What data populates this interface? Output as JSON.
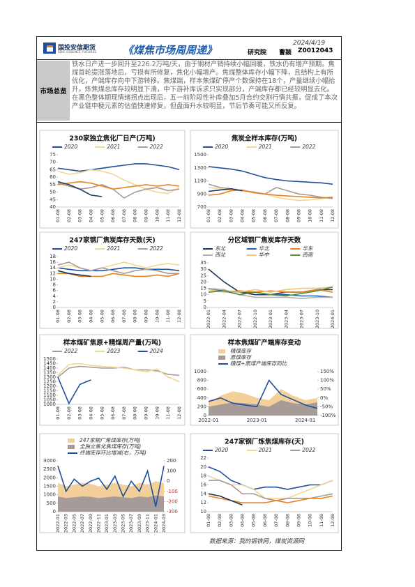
{
  "header": {
    "logo_cn": "国投安信期货",
    "logo_en": "SDIC ESSENCE FUTURES",
    "title": "《煤焦市场周周递》",
    "date": "2024/4/19",
    "institute": "研究院",
    "author": "曹颖",
    "code": "Z0012043"
  },
  "summary": {
    "label": "市场总览",
    "text": "铁水日产进一步回升至226.2万吨/天，由于钢材产销持续小幅回暖，铁水仍有增产预期。焦煤首轮提涨落地后，亏损有所修复，焦化小幅增产。焦煤整体库存小幅下降，且结构上有所优化，产端库存向中下游转移。焦煤端，样本焦煤矿停产个数保持在18个，产量继续小幅抬升。炼焦煤总库存较明显下滑，中下游补库诉求只实现部分，产端库存都已经较明显去化。在黑色整体期现情绪拐点出现后，五一前阶段性补库叠加5月合约交割行情共振，促成了本次产业链中梗元素的估值快速修复，但盘面升水较明显，节后节奏可能又所反复。"
  },
  "charts": [
    {
      "type": "line",
      "title": "230家独立焦化厂日产(万吨)",
      "categories": [
        "01-08",
        "02-08",
        "03-08",
        "04-08",
        "05-08",
        "06-08",
        "07-08",
        "08-08",
        "09-08",
        "10-08",
        "11-08",
        "12-08"
      ],
      "ylim": [
        40,
        75
      ],
      "yticks": [
        40,
        45,
        50,
        55,
        60,
        65,
        70,
        75
      ],
      "series": [
        {
          "name": "2020",
          "color": "#1f4e9c",
          "values": [
            66,
            65,
            64,
            65,
            66,
            67,
            68,
            69,
            69,
            68,
            67,
            65
          ]
        },
        {
          "name": "2021",
          "color": "#f3d594",
          "values": [
            64,
            62,
            63,
            65,
            64,
            62,
            58,
            55,
            52,
            50,
            49,
            53
          ]
        },
        {
          "name": "2022",
          "color": "#a69b96",
          "values": [
            56,
            54,
            52,
            53,
            55,
            52,
            46,
            50,
            52,
            53,
            51,
            52
          ]
        },
        {
          "color": "#e8821e",
          "values": [
            55,
            56,
            57,
            56,
            54,
            52,
            53,
            54,
            55,
            54,
            55,
            54
          ]
        },
        {
          "color": "#1a3560",
          "values": [
            57,
            55,
            52,
            48,
            47,
            null,
            null,
            null,
            null,
            null,
            null,
            null
          ]
        }
      ]
    },
    {
      "type": "line",
      "title": "焦炭全样本库存(万吨)",
      "categories": [
        "01-08",
        "02-08",
        "03-08",
        "04-08",
        "05-08",
        "06-08",
        "07-08",
        "08-08",
        "09-08",
        "10-08",
        "11-08",
        "12-08"
      ],
      "ylim": [
        700,
        1500
      ],
      "yticks": [
        700,
        900,
        1100,
        1300,
        1500
      ],
      "series": [
        {
          "name": "2020",
          "color": "#1f4e9c",
          "values": [
            1320,
            1300,
            1280,
            1250,
            1200,
            1150,
            1120,
            1100,
            1090,
            1080,
            1070,
            1050
          ]
        },
        {
          "name": "2021",
          "color": "#f3d594",
          "values": [
            1000,
            980,
            960,
            950,
            920,
            900,
            850,
            820,
            800,
            810,
            830,
            850
          ]
        },
        {
          "name": "2022",
          "color": "#a69b96",
          "values": [
            1050,
            1000,
            980,
            950,
            930,
            900,
            1000,
            950,
            900,
            880,
            850,
            830
          ]
        },
        {
          "color": "#e8821e",
          "values": [
            880,
            900,
            950,
            960,
            920,
            900,
            880,
            870,
            860,
            850,
            840,
            850
          ]
        },
        {
          "color": "#1a3560",
          "values": [
            940,
            960,
            980,
            950,
            null,
            null,
            null,
            null,
            null,
            null,
            null,
            null
          ]
        }
      ]
    },
    {
      "type": "line",
      "title": "247家钢厂焦炭库存天数(天)",
      "categories": [
        "01-08",
        "02-08",
        "03-08",
        "04-08",
        "05-08",
        "06-08",
        "07-08",
        "08-08",
        "09-08",
        "10-08",
        "11-08",
        "12-08"
      ],
      "ylim": [
        0,
        18
      ],
      "yticks": [
        0,
        2,
        4,
        6,
        8,
        10,
        12,
        14,
        16,
        18
      ],
      "series": [
        {
          "name": "2020",
          "color": "#1f4e9c",
          "values": [
            14,
            13.5,
            13,
            13,
            13,
            13.5,
            14,
            14,
            13.5,
            13.5,
            13.5,
            13
          ]
        },
        {
          "name": "2021",
          "color": "#f3d594",
          "values": [
            14,
            15,
            14,
            13,
            14,
            15,
            16,
            15,
            14,
            15,
            15.5,
            15
          ]
        },
        {
          "name": "2022",
          "color": "#a69b96",
          "values": [
            15,
            16,
            14,
            13,
            14,
            13,
            12,
            13,
            13.5,
            13,
            12,
            12
          ]
        },
        {
          "color": "#e8821e",
          "values": [
            12,
            12,
            11,
            11,
            11,
            12,
            11.5,
            11,
            11,
            11.5,
            11,
            12
          ]
        },
        {
          "color": "#1a3560",
          "values": [
            13,
            12,
            11.5,
            11,
            null,
            null,
            null,
            null,
            null,
            null,
            null,
            null
          ]
        }
      ]
    },
    {
      "type": "line",
      "title": "分区域钢厂焦炭库存天数",
      "categories": [
        "2022-01",
        "2022-04",
        "2022-07",
        "2022-10",
        "2023-01",
        "2023-04",
        "2023-07",
        "2023-10",
        "2024-01"
      ],
      "ylim": [
        0,
        35
      ],
      "yticks": [
        0,
        5,
        10,
        15,
        20,
        25,
        30,
        35
      ],
      "series": [
        {
          "name": "东北",
          "color": "#1a3560",
          "values": [
            30,
            20,
            12,
            10,
            10,
            12,
            12,
            14,
            14
          ]
        },
        {
          "name": "华北",
          "color": "#1f5fb0",
          "values": [
            14,
            13,
            12,
            12,
            10,
            10,
            9,
            9,
            8
          ]
        },
        {
          "name": "华东",
          "color": "#e8821e",
          "values": [
            14,
            12,
            13,
            12,
            13,
            12,
            12,
            14,
            12
          ]
        },
        {
          "name": "西北",
          "color": "#b0b0b0",
          "values": [
            15,
            14,
            10,
            8,
            8,
            8,
            7,
            8,
            8
          ]
        },
        {
          "name": "华中",
          "color": "#f0c27a",
          "values": [
            14,
            12,
            12,
            14,
            12,
            14,
            15,
            15,
            16
          ]
        },
        {
          "name": "西南",
          "color": "#5a8a3a",
          "values": [
            12,
            13,
            10,
            12,
            10,
            9,
            11,
            13,
            16
          ]
        }
      ]
    },
    {
      "type": "line",
      "title": "样本煤矿焦原+精煤周产量(万吨)",
      "categories": [
        "01-08",
        "02-08",
        "03-08",
        "04-08",
        "05-08",
        "06-08",
        "07-08",
        "08-08",
        "09-08",
        "10-08",
        "11-08",
        "12-08"
      ],
      "ylim": [
        1000,
        1500
      ],
      "yticks": [
        1000,
        1050,
        1100,
        1150,
        1200,
        1250,
        1300,
        1350,
        1400,
        1450,
        1500
      ],
      "series": [
        {
          "name": "2022",
          "color": "#a69b96",
          "values": [
            1300,
            1400,
            1420,
            1410,
            1400,
            1400,
            1410,
            1380,
            1380,
            1370,
            1330,
            1320
          ]
        },
        {
          "name": "2023",
          "color": "#f3d594",
          "values": [
            1320,
            1440,
            1450,
            1430,
            1420,
            1410,
            1400,
            1380,
            1360,
            1390,
            1300,
            1250
          ]
        },
        {
          "name": "2024",
          "color": "#1f4e9c",
          "values": [
            1300,
            1010,
            1220,
            1270,
            null,
            null,
            null,
            null,
            null,
            null,
            null,
            null
          ]
        }
      ]
    },
    {
      "type": "combo",
      "title": "样本焦煤矿产端库存变动",
      "categories": [
        "2022-01",
        null,
        null,
        null,
        "2023-01",
        null,
        null,
        null,
        "2024-01",
        null
      ],
      "ylim": [
        0,
        1000
      ],
      "yticks": [
        0,
        200,
        400,
        600,
        800,
        1000
      ],
      "y2lim": [
        -100,
        150
      ],
      "y2ticks": [
        {
          "value": -100,
          "label": "-100%"
        },
        {
          "value": -50,
          "label": "-50%"
        },
        {
          "value": 0,
          "label": "0%"
        },
        {
          "value": 50,
          "label": "50%"
        },
        {
          "value": 100,
          "label": "100%"
        },
        {
          "value": 150,
          "label": "150%"
        }
      ],
      "series": [
        {
          "name": "精煤库存",
          "kind": "area",
          "color": "#f3d09a",
          "values": [
            300,
            450,
            550,
            500,
            400,
            350,
            600,
            450,
            350,
            400
          ]
        },
        {
          "name": "原煤库存",
          "kind": "area",
          "color": "#a69b96",
          "values": [
            200,
            250,
            300,
            280,
            250,
            200,
            350,
            280,
            250,
            300
          ]
        },
        {
          "name": "精煤+原煤产端库存同比",
          "kind": "line",
          "axis": "y2",
          "color": "#1f4e9c",
          "values": [
            -20,
            0,
            -30,
            -40,
            -50,
            100,
            20,
            -10,
            -40,
            -60
          ]
        }
      ]
    },
    {
      "type": "combo",
      "title": null,
      "categories": [
        "2022-01",
        "2022-03",
        "2022-05",
        "2022-07",
        "2022-09",
        "2022-11",
        "2023-01",
        "2023-03",
        "2023-05",
        "2023-07",
        "2023-09",
        "2023-11",
        "2024-01",
        "2024-03"
      ],
      "ylim": [
        0,
        3000
      ],
      "yticks": [
        0,
        500,
        1000,
        1500,
        2000,
        2500,
        3000
      ],
      "y2lim": [
        -300,
        200
      ],
      "y2ticks": [
        -300,
        -200,
        -100,
        0,
        100,
        200
      ],
      "series": [
        {
          "name": "247家钢厂焦煤库存(万吨)",
          "kind": "area",
          "color": "#f3d09a",
          "values": [
            1700,
            1500,
            1600,
            1700,
            1650,
            1500,
            1600,
            1700,
            1600,
            1500,
            1700,
            1600,
            1800,
            1700
          ]
        },
        {
          "name": "全独立焦化焦煤库存(万吨)",
          "kind": "area",
          "color": "#a69b96",
          "values": [
            900,
            800,
            850,
            900,
            880,
            800,
            850,
            900,
            850,
            800,
            900,
            850,
            950,
            900
          ]
        },
        {
          "name": "终端库存环比增减(右，万吨)",
          "kind": "line",
          "axis": "y2",
          "color": "#1f4e9c",
          "values": [
            150,
            -100,
            20,
            -50,
            0,
            30,
            -80,
            50,
            -150,
            0,
            -100,
            100,
            -250,
            150
          ]
        }
      ]
    },
    {
      "type": "line",
      "title": "247家钢厂炼焦煤库存(天)",
      "categories": [
        "01-08",
        "02-08",
        "03-08",
        "04-08",
        "05-08",
        "06-08",
        "07-08",
        "08-08",
        "09-08",
        "10-08",
        "11-08",
        "12-08"
      ],
      "ylim": [
        10,
        22
      ],
      "yticks": [
        10,
        12,
        14,
        16,
        18,
        20,
        22
      ],
      "series": [
        {
          "name": "2020",
          "color": "#1f4e9c",
          "values": [
            20,
            19,
            17,
            16,
            15,
            15.5,
            15.5,
            15,
            15.5,
            16,
            16,
            17
          ]
        },
        {
          "name": "2021",
          "color": "#f3d594",
          "values": [
            18,
            17,
            16,
            16,
            15,
            13,
            13,
            13,
            14,
            15,
            16,
            17
          ]
        },
        {
          "name": "2022",
          "color": "#a69b96",
          "values": [
            17,
            17,
            16,
            14,
            14,
            13,
            12.5,
            13,
            13,
            13,
            13.5,
            14
          ]
        },
        {
          "color": "#e8821e",
          "values": [
            13.5,
            13,
            12.5,
            12,
            12,
            12,
            12.5,
            12,
            12.5,
            13,
            13,
            13.5
          ]
        },
        {
          "color": "#1a3560",
          "values": [
            14,
            13.5,
            12.5,
            11.5,
            null,
            null,
            null,
            null,
            null,
            null,
            null,
            null
          ]
        }
      ]
    }
  ],
  "footer": {
    "source": "数据来源：我的钢铁网，煤炭资源网"
  }
}
